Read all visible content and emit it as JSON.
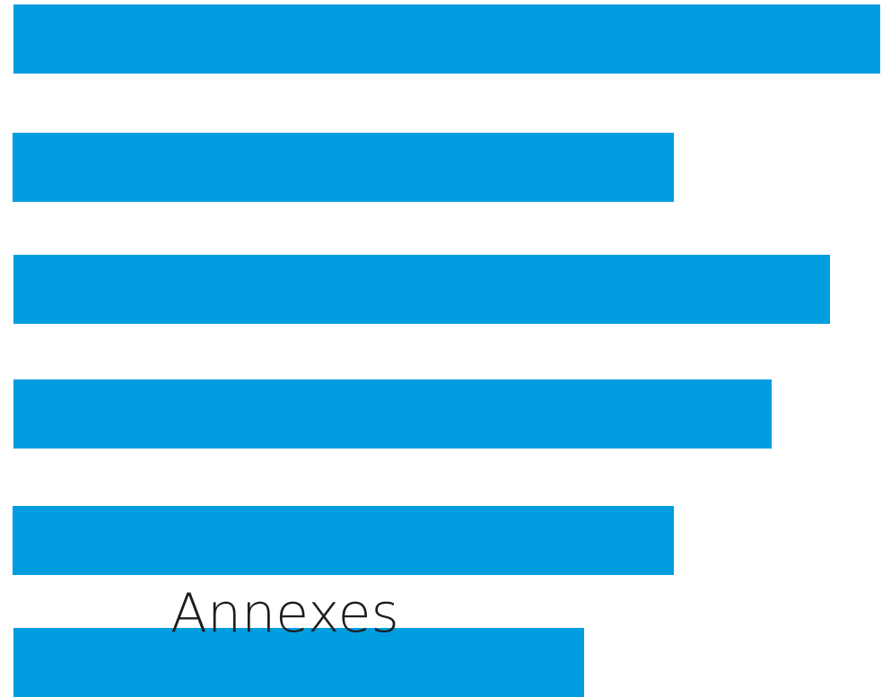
{
  "heading": "Annexes",
  "colors": {
    "bar": "#009DE0",
    "text": "#1D1D1B",
    "background": "#FFFFFF"
  },
  "decorative_bars": 6
}
